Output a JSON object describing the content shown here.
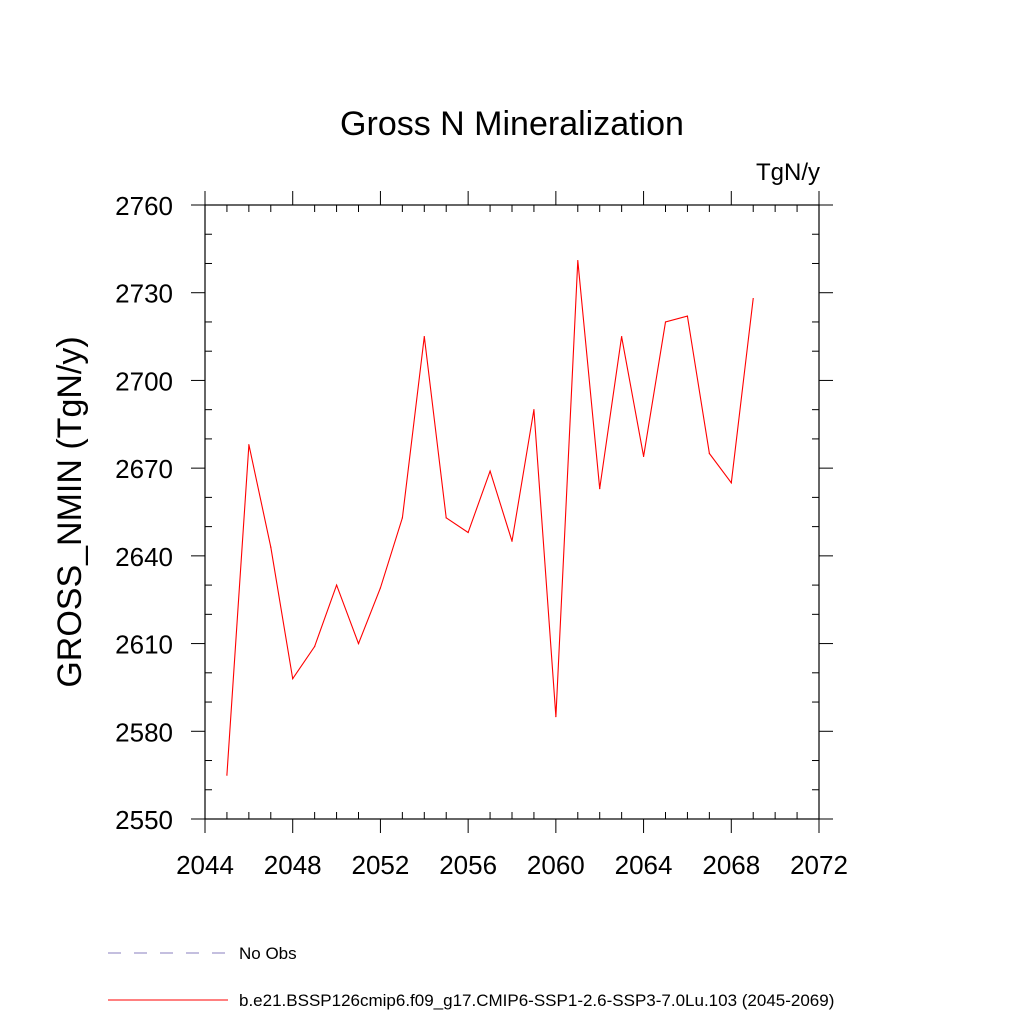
{
  "chart_data": {
    "type": "line",
    "title": "Gross N Mineralization",
    "units_label": "TgN/y",
    "ylabel": "GROSS_NMIN  (TgN/y)",
    "xlabel": "",
    "xlim": [
      2044,
      2072
    ],
    "ylim": [
      2550,
      2760
    ],
    "x_ticks": [
      2044,
      2048,
      2052,
      2056,
      2060,
      2064,
      2068,
      2072
    ],
    "x_tick_labels": [
      "2044",
      "2048",
      "2052",
      "2056",
      "2060",
      "2064",
      "2068",
      "2072"
    ],
    "x_minor_step": 1,
    "y_ticks": [
      2550,
      2580,
      2610,
      2640,
      2670,
      2700,
      2730,
      2760
    ],
    "y_tick_labels": [
      "2550",
      "2580",
      "2610",
      "2640",
      "2670",
      "2700",
      "2730",
      "2760"
    ],
    "y_minor_step": 10,
    "series": [
      {
        "name": "b.e21.BSSP126cmip6.f09_g17.CMIP6-SSP1-2.6-SSP3-7.0Lu.103 (2045-2069)",
        "color": "#ff0000",
        "x": [
          2045,
          2046,
          2047,
          2048,
          2049,
          2050,
          2051,
          2052,
          2053,
          2054,
          2055,
          2056,
          2057,
          2058,
          2059,
          2060,
          2061,
          2062,
          2063,
          2064,
          2065,
          2066,
          2067,
          2068,
          2069
        ],
        "values": [
          2565,
          2678,
          2643,
          2598,
          2609,
          2630,
          2610,
          2629,
          2653,
          2715,
          2653,
          2648,
          2669,
          2645,
          2690,
          2585,
          2741,
          2663,
          2715,
          2674,
          2720,
          2722,
          2675,
          2665,
          2728
        ]
      }
    ],
    "legend": {
      "placement": "bottom",
      "items": [
        {
          "label": "No Obs",
          "color": "#8a7fbf",
          "style": "dashed"
        },
        {
          "label": "b.e21.BSSP126cmip6.f09_g17.CMIP6-SSP1-2.6-SSP3-7.0Lu.103 (2045-2069)",
          "color": "#ff0000",
          "style": "solid"
        }
      ]
    }
  }
}
